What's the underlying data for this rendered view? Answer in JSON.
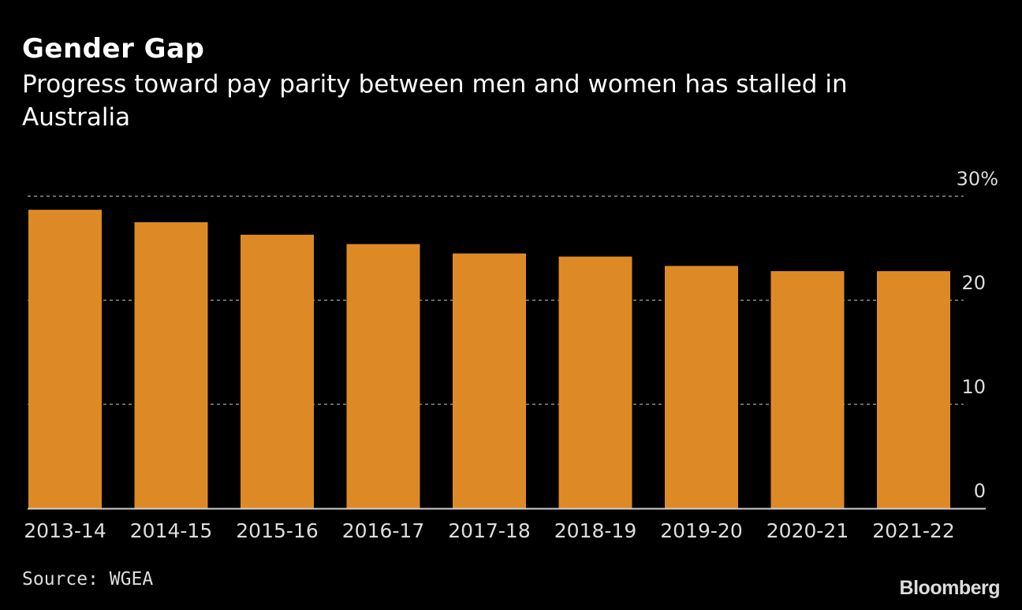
{
  "chart_data": {
    "type": "bar",
    "title": "Gender Gap",
    "subtitle": "Progress toward pay parity between men and women has stalled in Australia",
    "categories": [
      "2013-14",
      "2014-15",
      "2015-16",
      "2016-17",
      "2017-18",
      "2018-19",
      "2019-20",
      "2020-21",
      "2021-22"
    ],
    "values": [
      28.7,
      27.5,
      26.3,
      25.4,
      24.5,
      24.2,
      23.3,
      22.8,
      22.8
    ],
    "ylim": [
      0,
      30
    ],
    "yticks": [
      0,
      10,
      20,
      30
    ],
    "ytick_labels": [
      "0",
      "10",
      "20",
      "30%"
    ],
    "xlabel": "",
    "ylabel": "",
    "grid": true,
    "bar_color": "#dd8a26",
    "axis_position": "right"
  },
  "footer": {
    "source": "Source: WGEA",
    "logo": "Bloomberg"
  }
}
